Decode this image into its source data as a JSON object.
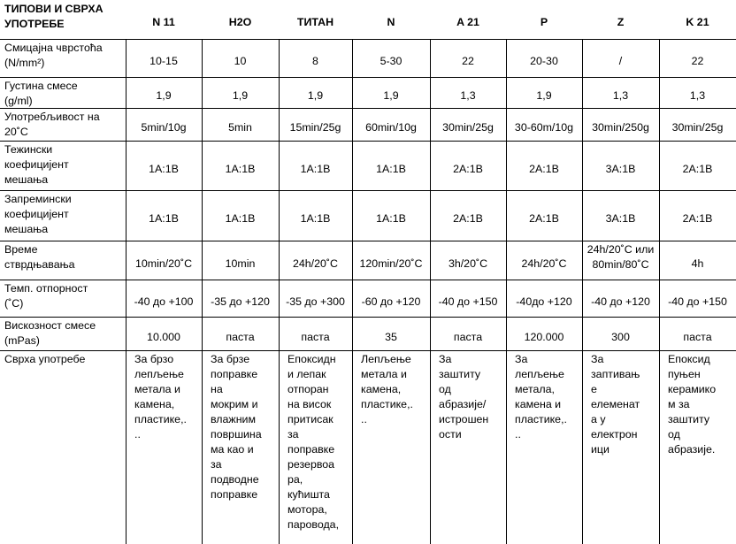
{
  "table": {
    "columns": [
      "ТИПОВИ И СВРХА\nУПОТРЕБЕ",
      "N 11",
      "H2O",
      "ТИТАН",
      "N",
      "A 21",
      "P",
      "Z",
      "K 21"
    ],
    "rows": [
      {
        "label": "Смицајна чврстоћа\n(N/mm²)",
        "values": [
          "10-15",
          "10",
          "8",
          "5-30",
          "22",
          "20-30",
          "/",
          "22"
        ]
      },
      {
        "label": "Густина смесе\n(g/ml)",
        "values": [
          "1,9",
          "1,9",
          "1,9",
          "1,9",
          "1,3",
          "1,9",
          "1,3",
          "1,3"
        ]
      },
      {
        "label": "Употребљивост на\n20˚C",
        "values": [
          "5min/10g",
          "5min",
          "15min/25g",
          "60min/10g",
          "30min/25g",
          "30-60m/10g",
          "30min/250g",
          "30min/25g"
        ]
      },
      {
        "label": "Тежински\nкоефицијент\nмешања",
        "values": [
          "1A:1B",
          "1A:1B",
          "1A:1B",
          "1A:1B",
          "2A:1B",
          "2A:1B",
          "3A:1B",
          "2A:1B"
        ]
      },
      {
        "label": "Запремински\nкоефицијент\nмешања",
        "values": [
          "1A:1B",
          "1A:1B",
          "1A:1B",
          "1A:1B",
          "2A:1B",
          "2A:1B",
          "3A:1B",
          "2A:1B"
        ]
      },
      {
        "label": "Време\nстврдњавања",
        "values": [
          "10min/20˚C",
          "10min",
          "24h/20˚C",
          "120min/20˚C",
          "3h/20˚C",
          "24h/20˚C",
          "24h/20˚C или\n80min/80˚C",
          "4h"
        ]
      },
      {
        "label": "Темп. отпорност\n(˚C)",
        "values": [
          "-40 до +100",
          "-35 до +120",
          "-35 до +300",
          "-60 до +120",
          "-40 до +150",
          "-40до +120",
          "-40 до +120",
          "-40 до +150"
        ]
      },
      {
        "label": "Вискозност смесе\n(mPas)",
        "values": [
          "10.000",
          "паста",
          "паста",
          "35",
          "паста",
          "120.000",
          "300",
          "паста"
        ]
      },
      {
        "label": "Сврха употребе",
        "values": [
          "За брзо\nлепљење\nметала и\nкамена,\nпластике,.\n..",
          "За брзе\nпоправке\nна\nмокрим и\nвлажним\nповршина\nма као и\nза\nподводне\nпоправке",
          "Епоксидн\nи лепак\nотпоран\nна висок\nпритисак\nза\nпоправке\nрезервоа\nра,\nкућишта\nмотора,\nпаровода,",
          "Лепљење\nметала и\nкамена,\nпластике,.\n..",
          "За\nзаштиту\nод\nабразије/\nистрошен\nости",
          "За\nлепљење\nметала,\nкамена и\nпластике,.\n..",
          "За\nзаптивањ\nе\nелеменат\nа у\nелектрон\nици",
          "Епоксид\nпуњен\nкерамико\nм за\nзаштиту\nод\nабразије."
        ]
      }
    ]
  }
}
